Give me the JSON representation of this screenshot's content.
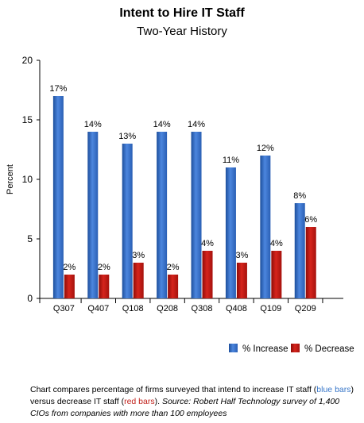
{
  "chart_data": {
    "type": "bar",
    "title": "Intent to Hire IT Staff",
    "subtitle": "Two-Year History",
    "ylabel": "Percent",
    "xlabel": "",
    "ylim": [
      0,
      20
    ],
    "yticks": [
      0,
      5,
      10,
      15,
      20
    ],
    "grid": false,
    "legend_position": "bottom-right",
    "categories": [
      "Q307",
      "Q407",
      "Q108",
      "Q208",
      "Q308",
      "Q408",
      "Q109",
      "Q209"
    ],
    "series": [
      {
        "name": "% Increase",
        "color": "#3d74cc",
        "values": [
          17,
          14,
          13,
          14,
          14,
          11,
          12,
          8
        ],
        "labels": [
          "17%",
          "14%",
          "13%",
          "14%",
          "14%",
          "11%",
          "12%",
          "8%"
        ]
      },
      {
        "name": "% Decrease",
        "color": "#c41a14",
        "values": [
          2,
          2,
          3,
          2,
          4,
          3,
          4,
          6
        ],
        "labels": [
          "2%",
          "2%",
          "3%",
          "2%",
          "4%",
          "3%",
          "4%",
          "6%"
        ]
      }
    ]
  },
  "caption": {
    "part1": "Chart compares percentage of firms surveyed that intend to increase IT staff (",
    "blue_term": "blue bars",
    "part2": ") versus decrease IT staff (",
    "red_term": "red bars",
    "part3": ").  ",
    "source": "Source: Robert Half Technology survey of 1,400 CIOs from companies with more than 100 employees"
  }
}
